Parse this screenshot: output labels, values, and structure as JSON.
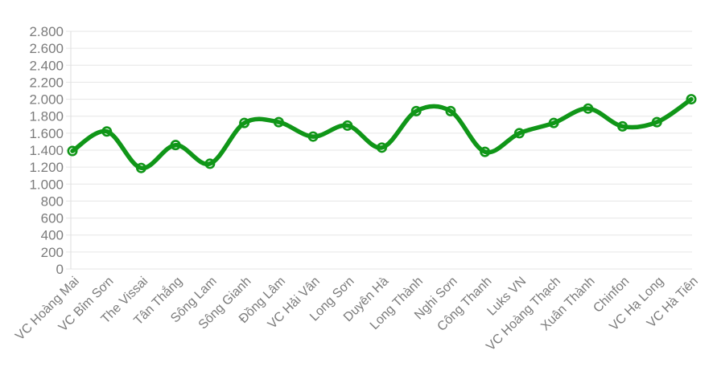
{
  "page": {
    "background_color": "#ffffff"
  },
  "chart_data": {
    "type": "line",
    "title": "",
    "subtitle": "",
    "xlabel": "",
    "ylabel": "",
    "legend_position": "none",
    "grid": true,
    "smooth": true,
    "categories": [
      "VC Hoàng Mai",
      "VC Bỉm Sơn",
      "The Vissai",
      "Tân Thắng",
      "Sông Lam",
      "Sông Gianh",
      "Đồng Lâm",
      "VC Hải Vân",
      "Long Sơn",
      "Duyên Hà",
      "Long Thành",
      "Nghi Sơn",
      "Công Thanh",
      "Luks VN",
      "VC Hoàng Thạch",
      "Xuân Thành",
      "Chinfon",
      "VC Hạ Long",
      "VC Hà Tiên"
    ],
    "values": [
      1390,
      1620,
      1190,
      1460,
      1240,
      1720,
      1730,
      1560,
      1690,
      1430,
      1860,
      1860,
      1380,
      1600,
      1720,
      1890,
      1680,
      1730,
      2000
    ],
    "ylim": [
      0,
      2800
    ],
    "y_tick_step": 200,
    "y_tick_labels": [
      "0",
      "200",
      "400",
      "600",
      "800",
      "1.000",
      "1.200",
      "1.400",
      "1.600",
      "1.800",
      "2.000",
      "2.200",
      "2.400",
      "2.600",
      "2.800"
    ],
    "colors": {
      "line": "#109618",
      "marker_fill": "#ffffff",
      "marker_stroke": "#109618",
      "gridline": "#e6e6e6",
      "axis_line": "#dedede",
      "tick_label": "#7b7b7b"
    }
  }
}
